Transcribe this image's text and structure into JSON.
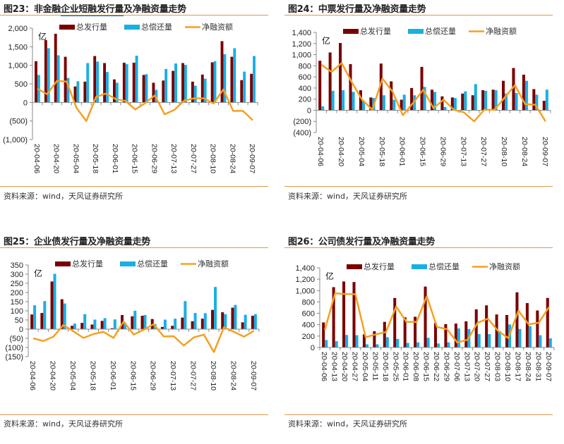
{
  "source_text": "资料来源：wind，天风证券研究所",
  "colors": {
    "issuance": "#7a0000",
    "repayment": "#1aaee5",
    "net": "#f5a020",
    "rule": "#d99a4e",
    "title_underline": "#2a5aa0"
  },
  "chart_data": [
    {
      "type": "bar",
      "figure_label": "图23：",
      "title_pre": "非金融",
      "title_underlined": "企业短融发行量",
      "title_post": "及净融资量走势",
      "unit": "亿",
      "legend": [
        "总发行量",
        "总偿还量",
        "净融资额"
      ],
      "ylim": [
        -1000,
        2000
      ],
      "yticks": [
        2000,
        1500,
        1000,
        500,
        0,
        -500,
        -1000
      ],
      "ytick_labels": [
        "2,000",
        "1,500",
        "1,000",
        "500",
        "0",
        "(500)",
        "(1,000)"
      ],
      "categories": [
        "20-04-06",
        "20-04-13",
        "20-04-20",
        "20-04-27",
        "20-05-04",
        "20-05-11",
        "20-05-18",
        "20-05-25",
        "20-06-01",
        "20-06-08",
        "20-06-15",
        "20-06-22",
        "20-06-29",
        "20-07-06",
        "20-07-13",
        "20-07-20",
        "20-07-27",
        "20-08-03",
        "20-08-10",
        "20-08-17",
        "20-08-24",
        "20-08-31",
        "20-09-07"
      ],
      "xtick_labels": [
        "20-04-06",
        "20-04-20",
        "20-05-04",
        "20-05-18",
        "20-06-01",
        "20-06-15",
        "20-06-29",
        "20-07-13",
        "20-07-27",
        "20-08-10",
        "20-08-24",
        "20-09-07"
      ],
      "xtick_every": 2,
      "series": [
        {
          "name": "总发行量",
          "kind": "bar",
          "values": [
            1110,
            1680,
            1850,
            1230,
            430,
            560,
            1250,
            1060,
            620,
            1070,
            1070,
            740,
            530,
            590,
            850,
            1060,
            560,
            750,
            1080,
            1650,
            1230,
            600,
            770
          ]
        },
        {
          "name": "总偿还量",
          "kind": "bar",
          "values": [
            740,
            1460,
            1270,
            660,
            570,
            1060,
            1100,
            820,
            530,
            1030,
            1260,
            760,
            340,
            900,
            1050,
            1010,
            450,
            640,
            1110,
            1300,
            1460,
            830,
            1250
          ]
        },
        {
          "name": "净融资额",
          "kind": "line",
          "values": [
            370,
            220,
            580,
            560,
            -150,
            -500,
            150,
            240,
            90,
            40,
            -190,
            -20,
            190,
            -320,
            -200,
            50,
            110,
            110,
            -30,
            350,
            -230,
            -230,
            -480
          ]
        }
      ],
      "grid": false,
      "legend_position": "top"
    },
    {
      "type": "bar",
      "figure_label": "图24：",
      "title_pre": "中票发行量及净融资量走势",
      "title_underlined": "",
      "title_post": "",
      "unit": "亿",
      "legend": [
        "总发行量",
        "总偿还量",
        "净融资额"
      ],
      "ylim": [
        -400,
        1400
      ],
      "yticks": [
        1400,
        1200,
        1000,
        800,
        600,
        400,
        200,
        0,
        -200,
        -400
      ],
      "ytick_labels": [
        "1,400",
        "1,200",
        "1,000",
        "800",
        "600",
        "400",
        "200",
        "0",
        "(200)",
        "(400)"
      ],
      "categories": [
        "20-04-06",
        "20-04-13",
        "20-04-20",
        "20-04-27",
        "20-05-04",
        "20-05-11",
        "20-05-18",
        "20-05-25",
        "20-06-01",
        "20-06-08",
        "20-06-15",
        "20-06-22",
        "20-06-29",
        "20-07-06",
        "20-07-13",
        "20-07-20",
        "20-07-27",
        "20-08-03",
        "20-08-10",
        "20-08-17",
        "20-08-24",
        "20-08-31",
        "20-09-07"
      ],
      "xtick_labels": [
        "20-04-06",
        "20-04-20",
        "20-05-04",
        "20-05-18",
        "20-06-01",
        "20-06-15",
        "20-06-29",
        "20-07-13",
        "20-07-27",
        "20-08-10",
        "20-08-24",
        "20-09-07"
      ],
      "xtick_every": 2,
      "series": [
        {
          "name": "总发行量",
          "kind": "bar",
          "values": [
            890,
            1040,
            1210,
            830,
            360,
            230,
            840,
            520,
            190,
            400,
            780,
            370,
            250,
            230,
            300,
            270,
            360,
            370,
            530,
            760,
            640,
            380,
            170
          ]
        },
        {
          "name": "总偿还量",
          "kind": "bar",
          "values": [
            70,
            350,
            360,
            330,
            170,
            220,
            270,
            190,
            280,
            270,
            420,
            330,
            60,
            220,
            340,
            470,
            350,
            360,
            300,
            310,
            530,
            280,
            370
          ]
        },
        {
          "name": "净融资额",
          "kind": "line",
          "values": [
            820,
            690,
            850,
            500,
            190,
            10,
            570,
            330,
            -90,
            130,
            370,
            40,
            190,
            10,
            -40,
            -200,
            10,
            10,
            230,
            450,
            110,
            100,
            -200
          ]
        }
      ],
      "grid": false,
      "legend_position": "top"
    },
    {
      "type": "bar",
      "figure_label": "图25：",
      "title_pre": "企业债发行量及净融资量走势",
      "title_underlined": "",
      "title_post": "",
      "unit": "亿",
      "legend": [
        "总发行量",
        "总偿还量",
        "净融资额"
      ],
      "ylim": [
        -150,
        350
      ],
      "yticks": [
        350,
        300,
        250,
        200,
        150,
        100,
        50,
        0,
        -50,
        -100,
        -150
      ],
      "ytick_labels": [
        "350",
        "300",
        "250",
        "200",
        "150",
        "100",
        "50",
        "0",
        "(50)",
        "(100)",
        "(150)"
      ],
      "categories": [
        "20-04-06",
        "20-04-13",
        "20-04-20",
        "20-04-27",
        "20-05-04",
        "20-05-11",
        "20-05-18",
        "20-05-25",
        "20-06-01",
        "20-06-08",
        "20-06-15",
        "20-06-22",
        "20-06-29",
        "20-07-06",
        "20-07-13",
        "20-07-20",
        "20-07-27",
        "20-08-03",
        "20-08-10",
        "20-08-17",
        "20-08-24",
        "20-08-31",
        "20-09-07"
      ],
      "xtick_labels": [
        "20-04-06",
        "20-04-20",
        "20-05-04",
        "20-05-18",
        "20-06-01",
        "20-06-15",
        "20-06-29",
        "20-07-13",
        "20-07-27",
        "20-08-10",
        "20-08-24",
        "20-09-07"
      ],
      "xtick_every": 2,
      "series": [
        {
          "name": "总发行量",
          "kind": "bar",
          "values": [
            80,
            88,
            260,
            163,
            18,
            34,
            25,
            45,
            5,
            77,
            70,
            73,
            55,
            12,
            18,
            63,
            43,
            57,
            105,
            92,
            117,
            37,
            73
          ]
        },
        {
          "name": "总偿还量",
          "kind": "bar",
          "values": [
            130,
            153,
            302,
            140,
            30,
            82,
            52,
            60,
            53,
            35,
            100,
            77,
            28,
            52,
            57,
            153,
            88,
            87,
            230,
            82,
            132,
            78,
            82
          ]
        },
        {
          "name": "净融资额",
          "kind": "line",
          "values": [
            -50,
            -65,
            -42,
            23,
            -12,
            -48,
            -27,
            -15,
            -48,
            42,
            -30,
            -4,
            27,
            -40,
            -39,
            -90,
            -45,
            -30,
            -125,
            10,
            -15,
            -41,
            -9
          ]
        }
      ],
      "grid": false,
      "legend_position": "top"
    },
    {
      "type": "bar",
      "figure_label": "图26：",
      "title_pre": "公司债发行量及净融资量走势",
      "title_underlined": "",
      "title_post": "",
      "unit": "亿",
      "legend": [
        "总发行量",
        "总偿还量",
        "净融资额"
      ],
      "ylim": [
        0,
        1400
      ],
      "yticks": [
        1400,
        1200,
        1000,
        800,
        600,
        400,
        200,
        0
      ],
      "ytick_labels": [
        "1,400",
        "1,200",
        "1,000",
        "800",
        "600",
        "400",
        "200",
        "0"
      ],
      "categories": [
        "20-04-06",
        "20-04-13",
        "20-04-20",
        "20-04-27",
        "20-05-04",
        "20-05-11",
        "20-05-18",
        "20-05-25",
        "20-06-01",
        "20-06-08",
        "20-06-15",
        "20-06-22",
        "20-06-29",
        "20-07-06",
        "20-07-13",
        "20-07-20",
        "20-07-27",
        "20-08-03",
        "20-08-10",
        "20-08-17",
        "20-08-24",
        "20-08-31",
        "20-09-07"
      ],
      "xtick_labels": [
        "20-04-06",
        "20-04-13",
        "20-04-20",
        "20-04-27",
        "20-05-04",
        "20-05-11",
        "20-05-18",
        "20-05-25",
        "20-06-01",
        "20-06-08",
        "20-06-15",
        "20-06-22",
        "20-06-29",
        "20-07-06",
        "20-07-13",
        "20-07-20",
        "20-07-27",
        "20-08-03",
        "20-08-10",
        "20-08-17",
        "20-08-24",
        "20-08-31",
        "20-09-07"
      ],
      "xtick_every": 1,
      "series": [
        {
          "name": "总发行量",
          "kind": "bar",
          "values": [
            440,
            1060,
            1160,
            1150,
            230,
            285,
            450,
            870,
            530,
            540,
            1070,
            430,
            410,
            420,
            460,
            670,
            740,
            580,
            570,
            970,
            780,
            650,
            870
          ]
        },
        {
          "name": "总偿还量",
          "kind": "bar",
          "values": [
            130,
            110,
            220,
            215,
            55,
            55,
            180,
            150,
            80,
            90,
            170,
            70,
            90,
            335,
            325,
            235,
            235,
            290,
            405,
            325,
            375,
            215,
            160
          ]
        },
        {
          "name": "净融资额",
          "kind": "line",
          "values": [
            310,
            950,
            940,
            935,
            180,
            230,
            270,
            720,
            450,
            450,
            900,
            360,
            320,
            85,
            135,
            435,
            505,
            290,
            165,
            645,
            405,
            435,
            710
          ]
        }
      ],
      "grid": false,
      "legend_position": "top"
    }
  ]
}
